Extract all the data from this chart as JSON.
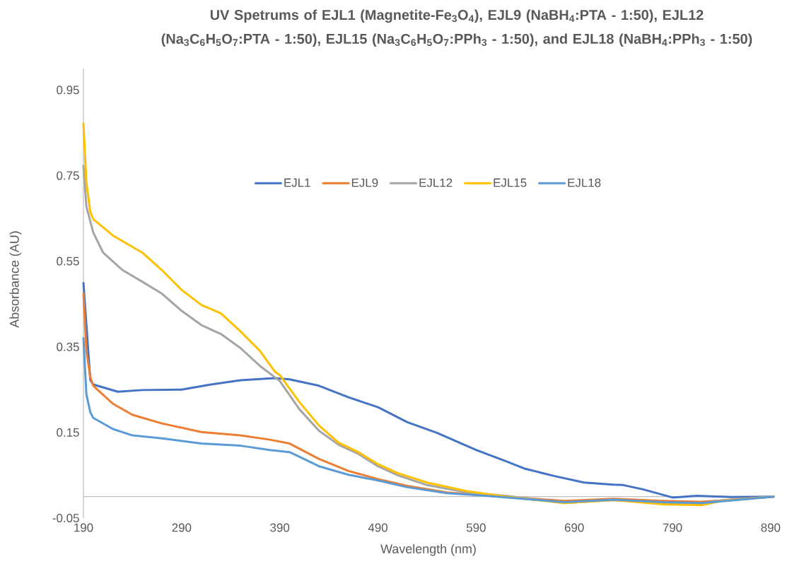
{
  "chart_data": {
    "type": "line",
    "title": "UV Spetrums of EJL1 (Magnetite-Fe$_{3}$O$_{4}$), EJL9 (NaBH$_{4}$:PTA - 1:50), EJL12 (Na$_{3}$C$_{6}$H$_{5}$O$_{7}$:PTA - 1:50), EJL15 (Na$_{3}$C$_{6}$H$_{5}$O$_{7}$:PPh$_{3}$ - 1:50), and EJL18 (NaBH$_{4}$:PPh$_{3}$ - 1:50)",
    "xlabel": "Wavelength (nm)",
    "ylabel": "Absorbance (AU)",
    "xlim": [
      190,
      893
    ],
    "ylim": [
      -0.05,
      1.0
    ],
    "xticks": [
      190,
      290,
      390,
      490,
      590,
      690,
      790,
      890
    ],
    "yticks": [
      -0.05,
      0.15,
      0.35,
      0.55,
      0.75,
      0.95
    ],
    "legend": "top",
    "grid": false,
    "marker": "none",
    "line_style": "solid",
    "series": [
      {
        "name": "EJL1",
        "color": "#4472c4",
        "x": [
          190,
          197,
          200,
          225,
          250,
          290,
          320,
          350,
          385,
          400,
          430,
          460,
          490,
          520,
          550,
          590,
          620,
          640,
          670,
          700,
          730,
          740,
          760,
          790,
          815,
          850,
          893
        ],
        "values": [
          0.499,
          0.272,
          0.262,
          0.245,
          0.249,
          0.25,
          0.262,
          0.272,
          0.277,
          0.274,
          0.259,
          0.232,
          0.209,
          0.174,
          0.149,
          0.109,
          0.083,
          0.065,
          0.048,
          0.033,
          0.028,
          0.027,
          0.017,
          -0.002,
          0.002,
          -0.001,
          0
        ]
      },
      {
        "name": "EJL9",
        "color": "#ed7d31",
        "x": [
          190,
          193,
          197,
          200,
          220,
          240,
          270,
          310,
          350,
          380,
          400,
          430,
          460,
          490,
          520,
          560,
          600,
          680,
          730,
          780,
          820,
          893
        ],
        "values": [
          0.474,
          0.34,
          0.279,
          0.259,
          0.217,
          0.191,
          0.171,
          0.151,
          0.143,
          0.133,
          0.124,
          0.088,
          0.06,
          0.041,
          0.025,
          0.01,
          0.003,
          -0.01,
          -0.005,
          -0.01,
          -0.012,
          0
        ]
      },
      {
        "name": "EJL12",
        "color": "#a5a5a5",
        "x": [
          190,
          193,
          200,
          210,
          230,
          250,
          270,
          290,
          310,
          330,
          350,
          370,
          390,
          410,
          430,
          450,
          470,
          490,
          510,
          540,
          580,
          620,
          680,
          730,
          780,
          820,
          835,
          893
        ],
        "values": [
          0.773,
          0.678,
          0.617,
          0.57,
          0.529,
          0.502,
          0.474,
          0.434,
          0.401,
          0.38,
          0.347,
          0.305,
          0.27,
          0.204,
          0.154,
          0.121,
          0.1,
          0.071,
          0.05,
          0.027,
          0.01,
          0.002,
          -0.015,
          -0.008,
          -0.015,
          -0.017,
          -0.01,
          0
        ]
      },
      {
        "name": "EJL15",
        "color": "#ffc000",
        "x": [
          190,
          193,
          197,
          200,
          220,
          250,
          270,
          290,
          310,
          330,
          350,
          370,
          385,
          390,
          410,
          430,
          450,
          470,
          490,
          510,
          540,
          580,
          620,
          680,
          730,
          780,
          820,
          840,
          893
        ],
        "values": [
          0.871,
          0.733,
          0.665,
          0.648,
          0.61,
          0.57,
          0.529,
          0.483,
          0.448,
          0.428,
          0.386,
          0.34,
          0.292,
          0.284,
          0.221,
          0.166,
          0.126,
          0.104,
          0.076,
          0.055,
          0.033,
          0.013,
          0.0,
          -0.015,
          -0.008,
          -0.018,
          -0.02,
          -0.01,
          0
        ]
      },
      {
        "name": "EJL18",
        "color": "#5b9bd5",
        "x": [
          190,
          193,
          197,
          200,
          220,
          240,
          270,
          310,
          350,
          380,
          400,
          430,
          460,
          490,
          520,
          560,
          600,
          680,
          730,
          780,
          820,
          893
        ],
        "values": [
          0.37,
          0.239,
          0.197,
          0.184,
          0.158,
          0.143,
          0.136,
          0.124,
          0.119,
          0.109,
          0.104,
          0.071,
          0.051,
          0.038,
          0.022,
          0.008,
          0.002,
          -0.013,
          -0.007,
          -0.013,
          -0.015,
          0
        ]
      }
    ]
  }
}
